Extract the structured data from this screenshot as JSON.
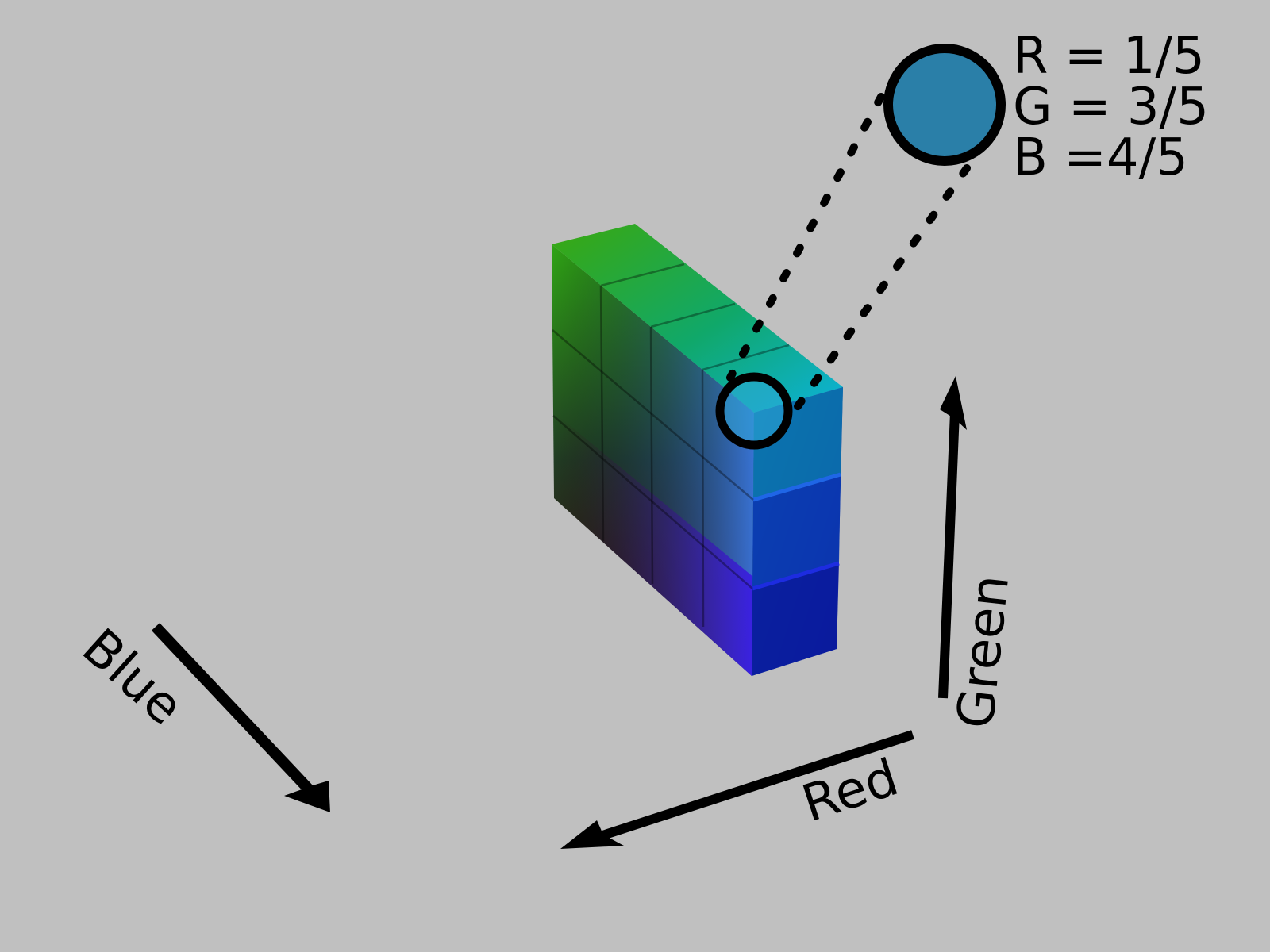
{
  "selected_color": {
    "fill": "#2a7fa8",
    "r_label": "R = 1/5",
    "g_label": "G = 3/5",
    "b_label": "B =4/5"
  },
  "axes": {
    "red": "Red",
    "green": "Green",
    "blue": "Blue"
  },
  "cube": {
    "front_face_colors": [
      "#0cb2dc",
      "#0f63c8",
      "#0a26b4"
    ],
    "edge_color": "#0c0c8c",
    "top_left_color": "#2ea60c",
    "bottom_left_color": "#3c0a08"
  }
}
